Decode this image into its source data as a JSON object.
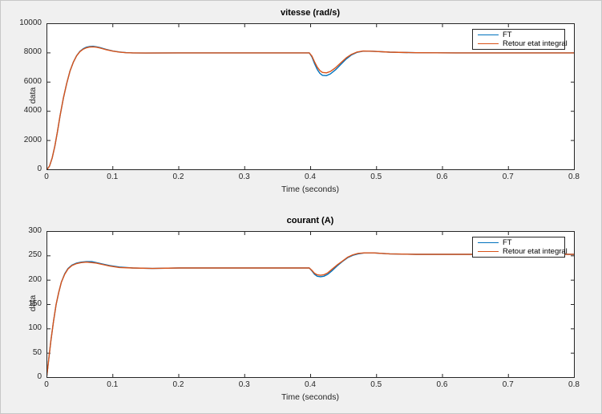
{
  "figure": {
    "background": "#f0f0f0",
    "axes_background": "#ffffff",
    "axis_color": "#262626",
    "title_color": "#000000"
  },
  "chart_data": [
    {
      "type": "line",
      "title": "vitesse (rad/s)",
      "xlabel": "Time (seconds)",
      "ylabel": "data",
      "xlim": [
        0,
        0.8
      ],
      "ylim": [
        0,
        10000
      ],
      "xticks": [
        0,
        0.1,
        0.2,
        0.3,
        0.4,
        0.5,
        0.6,
        0.7,
        0.8
      ],
      "xtick_labels": [
        "0",
        "0.1",
        "0.2",
        "0.3",
        "0.4",
        "0.5",
        "0.6",
        "0.7",
        "0.8"
      ],
      "yticks": [
        0,
        2000,
        4000,
        6000,
        8000,
        10000
      ],
      "ytick_labels": [
        "0",
        "2000",
        "4000",
        "6000",
        "8000",
        "10000"
      ],
      "grid": false,
      "legend_position": "northeast",
      "series": [
        {
          "name": "FT",
          "color": "#0072BD",
          "x": [
            0,
            0.004,
            0.008,
            0.012,
            0.016,
            0.02,
            0.025,
            0.03,
            0.035,
            0.04,
            0.045,
            0.05,
            0.055,
            0.06,
            0.065,
            0.07,
            0.075,
            0.08,
            0.09,
            0.1,
            0.11,
            0.12,
            0.13,
            0.15,
            0.2,
            0.3,
            0.398,
            0.402,
            0.406,
            0.41,
            0.414,
            0.418,
            0.424,
            0.43,
            0.438,
            0.446,
            0.454,
            0.462,
            0.47,
            0.48,
            0.495,
            0.52,
            0.56,
            0.62,
            0.7,
            0.8
          ],
          "y": [
            0,
            250,
            800,
            1600,
            2600,
            3700,
            4900,
            5900,
            6750,
            7350,
            7800,
            8100,
            8280,
            8390,
            8440,
            8450,
            8420,
            8370,
            8240,
            8130,
            8060,
            8020,
            8000,
            7990,
            8000,
            8000,
            8000,
            7720,
            7260,
            6870,
            6600,
            6460,
            6440,
            6560,
            6850,
            7220,
            7580,
            7860,
            8030,
            8120,
            8110,
            8050,
            8010,
            8000,
            8000,
            8000
          ]
        },
        {
          "name": "Retour etat integral",
          "color": "#D95319",
          "x": [
            0,
            0.004,
            0.008,
            0.012,
            0.016,
            0.02,
            0.025,
            0.03,
            0.035,
            0.04,
            0.045,
            0.05,
            0.055,
            0.06,
            0.065,
            0.07,
            0.075,
            0.08,
            0.09,
            0.1,
            0.11,
            0.12,
            0.13,
            0.15,
            0.2,
            0.3,
            0.398,
            0.402,
            0.406,
            0.41,
            0.414,
            0.418,
            0.424,
            0.43,
            0.438,
            0.446,
            0.454,
            0.462,
            0.47,
            0.48,
            0.495,
            0.52,
            0.56,
            0.62,
            0.7,
            0.8
          ],
          "y": [
            0,
            250,
            800,
            1600,
            2600,
            3700,
            4900,
            5900,
            6750,
            7350,
            7790,
            8080,
            8250,
            8350,
            8400,
            8410,
            8390,
            8340,
            8220,
            8120,
            8050,
            8010,
            8000,
            7990,
            8000,
            8000,
            8000,
            7780,
            7380,
            7030,
            6790,
            6660,
            6630,
            6730,
            6990,
            7330,
            7660,
            7900,
            8050,
            8130,
            8110,
            8050,
            8010,
            8000,
            8000,
            8000
          ]
        }
      ]
    },
    {
      "type": "line",
      "title": "courant (A)",
      "xlabel": "Time (seconds)",
      "ylabel": "data",
      "xlim": [
        0,
        0.8
      ],
      "ylim": [
        0,
        300
      ],
      "xticks": [
        0,
        0.1,
        0.2,
        0.3,
        0.4,
        0.5,
        0.6,
        0.7,
        0.8
      ],
      "xtick_labels": [
        "0",
        "0.1",
        "0.2",
        "0.3",
        "0.4",
        "0.5",
        "0.6",
        "0.7",
        "0.8"
      ],
      "yticks": [
        0,
        50,
        100,
        150,
        200,
        250,
        300
      ],
      "ytick_labels": [
        "0",
        "50",
        "100",
        "150",
        "200",
        "250",
        "300"
      ],
      "grid": false,
      "legend_position": "northeast",
      "series": [
        {
          "name": "FT",
          "color": "#0072BD",
          "x": [
            0,
            0.003,
            0.006,
            0.01,
            0.014,
            0.018,
            0.022,
            0.027,
            0.032,
            0.038,
            0.045,
            0.052,
            0.06,
            0.068,
            0.075,
            0.085,
            0.095,
            0.11,
            0.13,
            0.16,
            0.2,
            0.3,
            0.398,
            0.402,
            0.406,
            0.41,
            0.415,
            0.42,
            0.426,
            0.433,
            0.44,
            0.448,
            0.456,
            0.464,
            0.472,
            0.482,
            0.495,
            0.52,
            0.56,
            0.62,
            0.7,
            0.8
          ],
          "y": [
            4,
            40,
            75,
            115,
            150,
            175,
            196,
            213,
            224,
            231,
            235,
            237,
            238,
            238,
            236,
            233,
            230,
            227,
            225,
            224,
            225,
            225,
            225,
            219,
            212,
            208,
            207,
            208,
            212,
            220,
            229,
            238,
            246,
            251,
            254,
            256,
            256,
            254,
            253,
            253,
            253,
            253
          ]
        },
        {
          "name": "Retour etat integral",
          "color": "#D95319",
          "x": [
            0,
            0.003,
            0.006,
            0.01,
            0.014,
            0.018,
            0.022,
            0.027,
            0.032,
            0.038,
            0.045,
            0.052,
            0.06,
            0.068,
            0.075,
            0.085,
            0.095,
            0.11,
            0.13,
            0.16,
            0.2,
            0.3,
            0.398,
            0.402,
            0.406,
            0.41,
            0.415,
            0.42,
            0.426,
            0.433,
            0.44,
            0.448,
            0.456,
            0.464,
            0.472,
            0.482,
            0.495,
            0.52,
            0.56,
            0.62,
            0.7,
            0.8
          ],
          "y": [
            4,
            40,
            75,
            115,
            150,
            175,
            196,
            212,
            223,
            230,
            234,
            236,
            237,
            236,
            235,
            232,
            229,
            226,
            225,
            224,
            225,
            225,
            225,
            220,
            214,
            211,
            210,
            211,
            215,
            223,
            231,
            239,
            247,
            252,
            255,
            256,
            256,
            254,
            253,
            253,
            253,
            253
          ]
        }
      ]
    }
  ]
}
